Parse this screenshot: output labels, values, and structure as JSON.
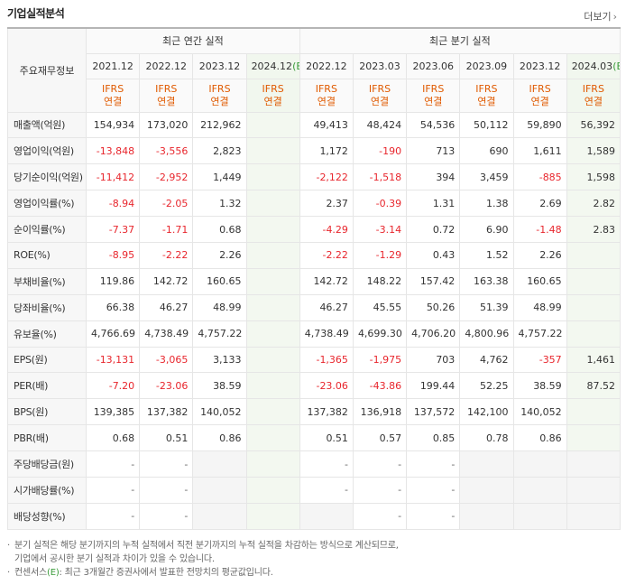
{
  "header": {
    "title": "기업실적분석",
    "more_label": "더보기",
    "more_icon": "chevron-right-icon"
  },
  "table": {
    "row_header_label": "주요재무정보",
    "groups": [
      {
        "label": "최근 연간 실적",
        "span": 4
      },
      {
        "label": "최근 분기 실적",
        "span": 6
      }
    ],
    "periods": [
      {
        "label": "2021.12",
        "estimate": false
      },
      {
        "label": "2022.12",
        "estimate": false
      },
      {
        "label": "2023.12",
        "estimate": false
      },
      {
        "label": "2024.12",
        "estimate": true,
        "est_mark": "(E)"
      },
      {
        "label": "2022.12",
        "estimate": false
      },
      {
        "label": "2023.03",
        "estimate": false
      },
      {
        "label": "2023.06",
        "estimate": false
      },
      {
        "label": "2023.09",
        "estimate": false
      },
      {
        "label": "2023.12",
        "estimate": false
      },
      {
        "label": "2024.03",
        "estimate": true,
        "est_mark": "(E)"
      }
    ],
    "basis_line1": "IFRS",
    "basis_line2": "연결",
    "rows": [
      {
        "label": "매출액(억원)",
        "values": [
          "154,934",
          "173,020",
          "212,962",
          "",
          "49,413",
          "48,424",
          "54,536",
          "50,112",
          "59,890",
          "56,392"
        ]
      },
      {
        "label": "영업이익(억원)",
        "values": [
          "-13,848",
          "-3,556",
          "2,823",
          "",
          "1,172",
          "-190",
          "713",
          "690",
          "1,611",
          "1,589"
        ]
      },
      {
        "label": "당기순이익(억원)",
        "values": [
          "-11,412",
          "-2,952",
          "1,449",
          "",
          "-2,122",
          "-1,518",
          "394",
          "3,459",
          "-885",
          "1,598"
        ]
      },
      {
        "label": "영업이익률(%)",
        "values": [
          "-8.94",
          "-2.05",
          "1.32",
          "",
          "2.37",
          "-0.39",
          "1.31",
          "1.38",
          "2.69",
          "2.82"
        ]
      },
      {
        "label": "순이익률(%)",
        "values": [
          "-7.37",
          "-1.71",
          "0.68",
          "",
          "-4.29",
          "-3.14",
          "0.72",
          "6.90",
          "-1.48",
          "2.83"
        ]
      },
      {
        "label": "ROE(%)",
        "values": [
          "-8.95",
          "-2.22",
          "2.26",
          "",
          "-2.22",
          "-1.29",
          "0.43",
          "1.52",
          "2.26",
          ""
        ]
      },
      {
        "label": "부채비율(%)",
        "values": [
          "119.86",
          "142.72",
          "160.65",
          "",
          "142.72",
          "148.22",
          "157.42",
          "163.38",
          "160.65",
          ""
        ]
      },
      {
        "label": "당좌비율(%)",
        "values": [
          "66.38",
          "46.27",
          "48.99",
          "",
          "46.27",
          "45.55",
          "50.26",
          "51.39",
          "48.99",
          ""
        ]
      },
      {
        "label": "유보율(%)",
        "values": [
          "4,766.69",
          "4,738.49",
          "4,757.22",
          "",
          "4,738.49",
          "4,699.30",
          "4,706.20",
          "4,800.96",
          "4,757.22",
          ""
        ]
      },
      {
        "label": "EPS(원)",
        "values": [
          "-13,131",
          "-3,065",
          "3,133",
          "",
          "-1,365",
          "-1,975",
          "703",
          "4,762",
          "-357",
          "1,461"
        ]
      },
      {
        "label": "PER(배)",
        "values": [
          "-7.20",
          "-23.06",
          "38.59",
          "",
          "-23.06",
          "-43.86",
          "199.44",
          "52.25",
          "38.59",
          "87.52"
        ]
      },
      {
        "label": "BPS(원)",
        "values": [
          "139,385",
          "137,382",
          "140,052",
          "",
          "137,382",
          "136,918",
          "137,572",
          "142,100",
          "140,052",
          ""
        ]
      },
      {
        "label": "PBR(배)",
        "values": [
          "0.68",
          "0.51",
          "0.86",
          "",
          "0.51",
          "0.57",
          "0.85",
          "0.78",
          "0.86",
          ""
        ]
      },
      {
        "label": "주당배당금(원)",
        "values": [
          "-",
          "-",
          "",
          "",
          "-",
          "-",
          "-",
          "",
          "",
          ""
        ]
      },
      {
        "label": "시가배당률(%)",
        "values": [
          "-",
          "-",
          "",
          "",
          "-",
          "-",
          "-",
          "",
          "",
          ""
        ]
      },
      {
        "label": "배당성향(%)",
        "values": [
          "-",
          "-",
          "",
          "",
          "",
          "-",
          "-",
          "",
          "",
          ""
        ]
      }
    ],
    "group_starts": [
      3,
      6,
      9,
      13
    ],
    "blank_cells": [
      [
        13,
        2
      ],
      [
        13,
        7
      ],
      [
        13,
        8
      ],
      [
        13,
        9
      ],
      [
        14,
        2
      ],
      [
        14,
        7
      ],
      [
        14,
        8
      ],
      [
        14,
        9
      ],
      [
        15,
        2
      ],
      [
        15,
        4
      ],
      [
        15,
        7
      ],
      [
        15,
        8
      ],
      [
        15,
        9
      ]
    ]
  },
  "notes": {
    "bullet": "·",
    "line1": "분기 실적은 해당 분기까지의 누적 실적에서 직전 분기까지의 누적 실적을 차감하는 방식으로 계산되므로,",
    "line2": "기업에서 공시한 분기 실적과 차이가 있을 수 있습니다.",
    "line3_prefix": "컨센서스",
    "line3_mark": "(E)",
    "line3_suffix": ": 최근 3개월간 증권사에서 발표한 전망치의 평균값입니다."
  },
  "colors": {
    "negative": "#e8262d",
    "basis": "#e05a00",
    "estimate_mark": "#3a9b3a",
    "estimate_bg": "#f3f8f0"
  }
}
